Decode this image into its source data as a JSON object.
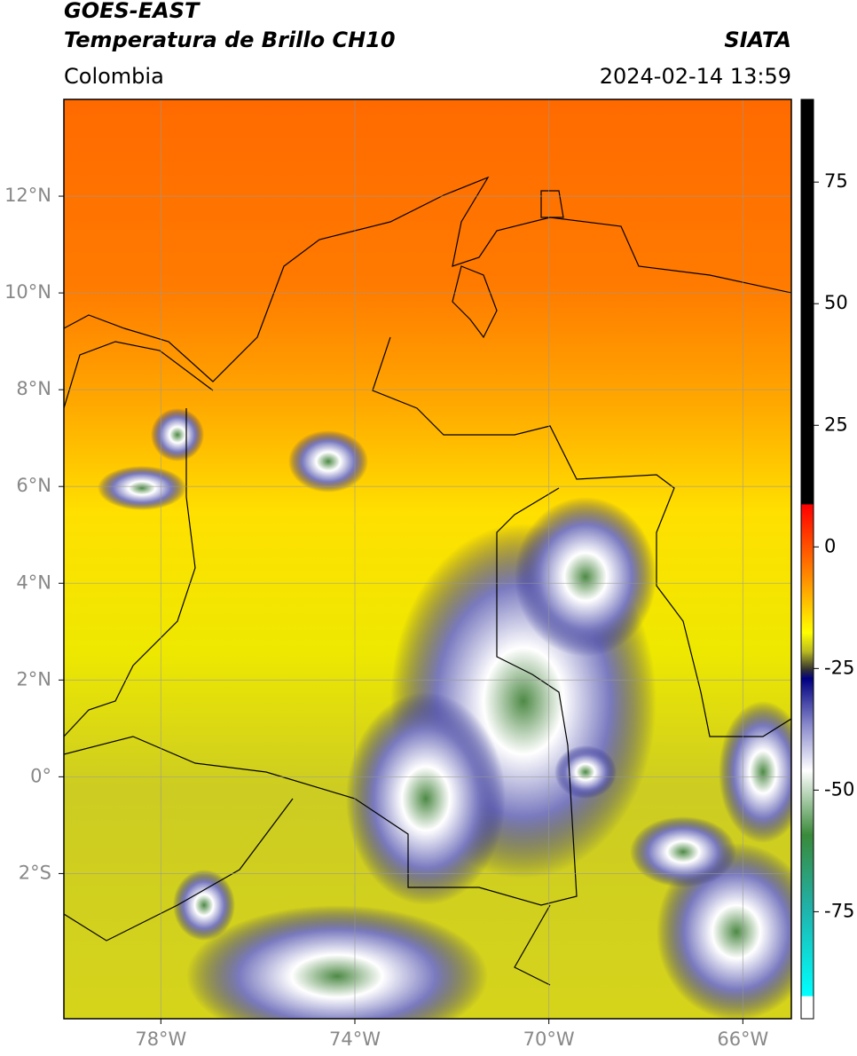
{
  "header": {
    "title": "GOES-EAST",
    "subtitle": "Temperatura de Brillo CH10",
    "region": "Colombia",
    "source": "SIATA",
    "datetime": "2024-02-14 13:59"
  },
  "map": {
    "xlim": [
      -80,
      -65
    ],
    "ylim": [
      -5,
      14
    ],
    "xticks": [
      {
        "value": -78,
        "label": "78°W"
      },
      {
        "value": -74,
        "label": "74°W"
      },
      {
        "value": -70,
        "label": "70°W"
      },
      {
        "value": -66,
        "label": "66°W"
      }
    ],
    "yticks": [
      {
        "value": 12,
        "label": "12°N"
      },
      {
        "value": 10,
        "label": "10°N"
      },
      {
        "value": 8,
        "label": "8°N"
      },
      {
        "value": 6,
        "label": "6°N"
      },
      {
        "value": 4,
        "label": "4°N"
      },
      {
        "value": 2,
        "label": "2°N"
      },
      {
        "value": 0,
        "label": "0°"
      },
      {
        "value": -2,
        "label": "2°S"
      }
    ]
  },
  "colorbar": {
    "lim": [
      -97,
      92
    ],
    "ticks": [
      75,
      50,
      25,
      0,
      -25,
      -50,
      -75
    ]
  }
}
